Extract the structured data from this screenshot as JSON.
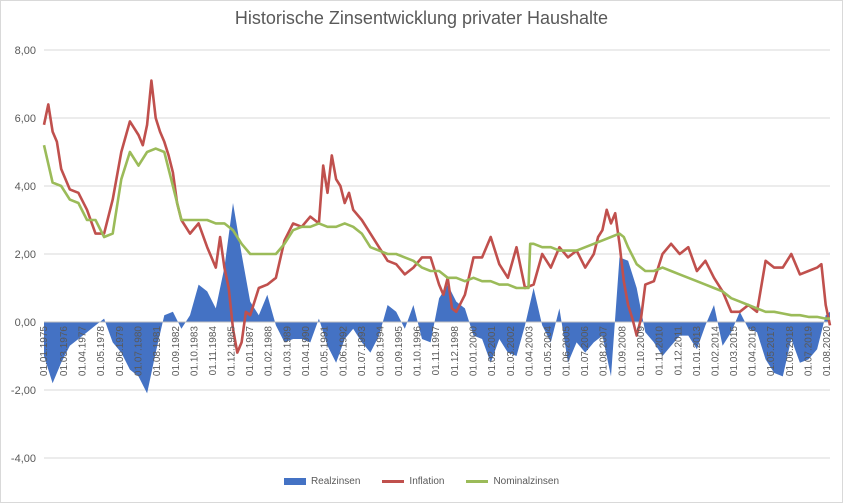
{
  "chart_data": {
    "type": "line",
    "title": "Historische Zinsentwicklung privater Haushalte",
    "xlabel": "",
    "ylabel": "",
    "ylim": [
      -4,
      8
    ],
    "y_ticks": [
      "8,00",
      "6,00",
      "4,00",
      "2,00",
      "0,00",
      "-2,00",
      "-4,00"
    ],
    "y_tick_values": [
      8,
      6,
      4,
      2,
      0,
      -2,
      -4
    ],
    "x_tick_labels": [
      "01.01.1975",
      "01.03.1976",
      "01.04.1977",
      "01.05.1978",
      "01.06.1979",
      "01.07.1980",
      "01.08.1981",
      "01.09.1982",
      "01.10.1983",
      "01.11.1984",
      "01.12.1985",
      "01.01.1987",
      "01.02.1988",
      "01.03.1989",
      "01.04.1990",
      "01.05.1991",
      "01.06.1992",
      "01.07.1993",
      "01.08.1994",
      "01.09.1995",
      "01.10.1996",
      "01.11.1997",
      "01.12.1998",
      "01.01.2000",
      "01.02.2001",
      "01.03.2002",
      "01.04.2003",
      "01.05.2004",
      "01.06.2005",
      "01.07.2006",
      "01.08.2007",
      "01.09.2008",
      "01.10.2009",
      "01.11.2010",
      "01.12.2011",
      "01.01.2013",
      "01.02.2014",
      "01.03.2015",
      "01.04.2016",
      "01.05.2017",
      "01.06.2018",
      "01.07.2019",
      "01.08.2020"
    ],
    "x_tick_years": [
      1975.0,
      1976.17,
      1977.25,
      1978.33,
      1979.42,
      1980.5,
      1981.58,
      1982.67,
      1983.75,
      1984.83,
      1985.92,
      1987.0,
      1988.08,
      1989.17,
      1990.25,
      1991.33,
      1992.42,
      1993.5,
      1994.58,
      1995.67,
      1996.75,
      1997.83,
      1998.92,
      2000.0,
      2001.08,
      2002.17,
      2003.25,
      2004.33,
      2005.42,
      2006.5,
      2007.58,
      2008.67,
      2009.75,
      2010.83,
      2011.92,
      2013.0,
      2014.08,
      2015.17,
      2016.25,
      2017.33,
      2018.42,
      2019.5,
      2020.58
    ],
    "x_range_years": [
      1975.0,
      2020.75
    ],
    "series": [
      {
        "name": "Realzinsen",
        "kind": "area",
        "color": "#4472c4",
        "x": [
          1975.0,
          1975.5,
          1976.0,
          1976.5,
          1977.0,
          1977.5,
          1978.0,
          1978.5,
          1979.0,
          1979.5,
          1980.0,
          1980.5,
          1981.0,
          1981.5,
          1982.0,
          1982.5,
          1983.0,
          1983.5,
          1984.0,
          1984.5,
          1985.0,
          1985.5,
          1986.0,
          1986.5,
          1987.0,
          1987.5,
          1988.0,
          1988.5,
          1989.0,
          1989.5,
          1990.0,
          1990.5,
          1991.0,
          1991.5,
          1992.0,
          1992.5,
          1993.0,
          1993.5,
          1994.0,
          1994.5,
          1995.0,
          1995.5,
          1996.0,
          1996.5,
          1997.0,
          1997.5,
          1998.0,
          1998.5,
          1999.0,
          1999.5,
          2000.0,
          2000.5,
          2001.0,
          2001.5,
          2002.0,
          2002.5,
          2003.0,
          2003.5,
          2004.0,
          2004.5,
          2005.0,
          2005.5,
          2006.0,
          2006.5,
          2007.0,
          2007.5,
          2008.0,
          2008.5,
          2009.0,
          2009.5,
          2010.0,
          2010.5,
          2011.0,
          2011.5,
          2012.0,
          2012.5,
          2013.0,
          2013.5,
          2014.0,
          2014.5,
          2015.0,
          2015.5,
          2016.0,
          2016.5,
          2017.0,
          2017.5,
          2018.0,
          2018.5,
          2019.0,
          2019.5,
          2020.0,
          2020.5,
          2020.75
        ],
        "values": [
          -1.0,
          -1.8,
          -1.2,
          -0.7,
          -0.5,
          -0.3,
          -0.1,
          0.1,
          -0.6,
          -0.9,
          -1.4,
          -1.6,
          -2.1,
          -0.9,
          0.2,
          0.3,
          -0.2,
          0.2,
          1.1,
          0.9,
          0.4,
          1.6,
          3.5,
          2.0,
          0.6,
          0.2,
          0.8,
          -0.1,
          -0.6,
          -0.5,
          -0.5,
          -0.6,
          0.1,
          -0.7,
          -1.2,
          -0.5,
          -0.2,
          -0.6,
          -0.9,
          -0.4,
          0.5,
          0.3,
          -0.2,
          0.5,
          -0.5,
          -0.6,
          0.7,
          1.1,
          0.6,
          0.4,
          -0.4,
          -0.5,
          -1.2,
          -0.5,
          -0.9,
          -1.0,
          -0.1,
          1.0,
          -0.1,
          -0.6,
          0.4,
          -1.2,
          -0.6,
          -0.9,
          -0.6,
          -0.4,
          -1.6,
          1.9,
          1.8,
          1.0,
          -0.3,
          -0.6,
          -1.0,
          -0.7,
          -0.4,
          -0.4,
          -0.8,
          -0.1,
          0.5,
          -0.7,
          -0.3,
          0.3,
          -0.2,
          -0.3,
          -1.1,
          -1.5,
          -1.6,
          -0.5,
          -1.2,
          -1.1,
          -0.8,
          0.2,
          0.3
        ]
      },
      {
        "name": "Inflation",
        "kind": "line",
        "color": "#c0504d",
        "x": [
          1975.0,
          1975.25,
          1975.5,
          1975.75,
          1976.0,
          1976.5,
          1977.0,
          1977.5,
          1978.0,
          1978.5,
          1979.0,
          1979.5,
          1980.0,
          1980.5,
          1980.75,
          1981.0,
          1981.25,
          1981.5,
          1981.75,
          1982.0,
          1982.25,
          1982.5,
          1982.75,
          1983.0,
          1983.5,
          1984.0,
          1984.5,
          1985.0,
          1985.25,
          1985.5,
          1985.75,
          1986.0,
          1986.25,
          1986.5,
          1986.75,
          1987.0,
          1987.5,
          1988.0,
          1988.5,
          1989.0,
          1989.5,
          1990.0,
          1990.5,
          1991.0,
          1991.25,
          1991.5,
          1991.75,
          1992.0,
          1992.25,
          1992.5,
          1992.75,
          1993.0,
          1993.5,
          1994.0,
          1994.5,
          1995.0,
          1995.5,
          1996.0,
          1996.5,
          1997.0,
          1997.5,
          1998.0,
          1998.25,
          1998.5,
          1998.75,
          1999.0,
          1999.5,
          2000.0,
          2000.5,
          2001.0,
          2001.5,
          2002.0,
          2002.5,
          2003.0,
          2003.5,
          2004.0,
          2004.5,
          2005.0,
          2005.5,
          2006.0,
          2006.5,
          2007.0,
          2007.25,
          2007.5,
          2007.75,
          2008.0,
          2008.25,
          2008.5,
          2008.75,
          2009.0,
          2009.25,
          2009.5,
          2009.75,
          2010.0,
          2010.5,
          2011.0,
          2011.5,
          2012.0,
          2012.5,
          2013.0,
          2013.5,
          2014.0,
          2014.5,
          2015.0,
          2015.5,
          2016.0,
          2016.5,
          2017.0,
          2017.5,
          2018.0,
          2018.5,
          2019.0,
          2019.5,
          2020.0,
          2020.25,
          2020.5,
          2020.75
        ],
        "values": [
          5.8,
          6.4,
          5.6,
          5.3,
          4.5,
          3.9,
          3.8,
          3.3,
          2.6,
          2.6,
          3.6,
          5.0,
          5.9,
          5.5,
          5.2,
          5.8,
          7.1,
          6.0,
          5.6,
          5.3,
          4.9,
          4.4,
          3.5,
          3.0,
          2.6,
          2.9,
          2.2,
          1.6,
          2.5,
          1.6,
          1.0,
          -0.2,
          -0.9,
          -0.6,
          0.3,
          0.2,
          1.0,
          1.1,
          1.3,
          2.4,
          2.9,
          2.8,
          3.1,
          2.9,
          4.6,
          3.8,
          4.9,
          4.2,
          4.0,
          3.5,
          3.8,
          3.3,
          3.0,
          2.6,
          2.2,
          1.8,
          1.7,
          1.4,
          1.6,
          1.9,
          1.9,
          1.1,
          0.8,
          1.3,
          0.4,
          0.3,
          0.8,
          1.9,
          1.9,
          2.5,
          1.7,
          1.3,
          2.2,
          1.0,
          1.1,
          2.0,
          1.6,
          2.2,
          1.9,
          2.1,
          1.6,
          2.0,
          2.5,
          2.7,
          3.3,
          2.9,
          3.2,
          2.3,
          1.2,
          0.5,
          0.1,
          -0.4,
          0.1,
          1.1,
          1.2,
          2.0,
          2.3,
          2.0,
          2.2,
          1.5,
          1.8,
          1.3,
          0.9,
          0.3,
          0.3,
          0.5,
          0.3,
          1.8,
          1.6,
          1.6,
          2.0,
          1.4,
          1.5,
          1.6,
          1.7,
          0.5,
          -0.1
        ]
      },
      {
        "name": "Nominalzinsen",
        "kind": "line",
        "color": "#9bbb59",
        "x": [
          1975.0,
          1975.5,
          1976.0,
          1976.5,
          1977.0,
          1977.5,
          1978.0,
          1978.5,
          1979.0,
          1979.5,
          1980.0,
          1980.5,
          1981.0,
          1981.5,
          1982.0,
          1982.5,
          1983.0,
          1983.5,
          1984.0,
          1984.5,
          1985.0,
          1985.5,
          1986.0,
          1986.5,
          1987.0,
          1987.5,
          1988.0,
          1988.5,
          1989.0,
          1989.5,
          1990.0,
          1990.5,
          1991.0,
          1991.5,
          1992.0,
          1992.5,
          1993.0,
          1993.5,
          1994.0,
          1994.5,
          1995.0,
          1995.5,
          1996.0,
          1996.5,
          1997.0,
          1997.5,
          1998.0,
          1998.5,
          1999.0,
          1999.5,
          2000.0,
          2000.5,
          2001.0,
          2001.5,
          2002.0,
          2002.5,
          2003.0,
          2003.2,
          2003.3,
          2003.5,
          2004.0,
          2004.5,
          2005.0,
          2005.5,
          2006.0,
          2006.5,
          2007.0,
          2007.5,
          2008.0,
          2008.5,
          2008.75,
          2009.0,
          2009.5,
          2010.0,
          2010.5,
          2011.0,
          2011.5,
          2012.0,
          2012.5,
          2013.0,
          2013.5,
          2014.0,
          2014.5,
          2015.0,
          2015.5,
          2016.0,
          2016.5,
          2017.0,
          2017.5,
          2018.0,
          2018.5,
          2019.0,
          2019.5,
          2020.0,
          2020.5,
          2020.75
        ],
        "values": [
          5.2,
          4.1,
          4.0,
          3.6,
          3.5,
          3.0,
          3.0,
          2.5,
          2.6,
          4.2,
          5.0,
          4.6,
          5.0,
          5.1,
          5.0,
          4.0,
          3.0,
          3.0,
          3.0,
          3.0,
          2.9,
          2.9,
          2.7,
          2.3,
          2.0,
          2.0,
          2.0,
          2.0,
          2.3,
          2.7,
          2.8,
          2.8,
          2.9,
          2.8,
          2.8,
          2.9,
          2.8,
          2.6,
          2.2,
          2.1,
          2.0,
          2.0,
          1.9,
          1.8,
          1.6,
          1.5,
          1.5,
          1.3,
          1.3,
          1.2,
          1.3,
          1.2,
          1.2,
          1.1,
          1.1,
          1.0,
          1.0,
          1.0,
          2.3,
          2.3,
          2.2,
          2.2,
          2.1,
          2.1,
          2.1,
          2.2,
          2.3,
          2.4,
          2.5,
          2.6,
          2.5,
          2.2,
          1.7,
          1.5,
          1.5,
          1.6,
          1.5,
          1.4,
          1.3,
          1.2,
          1.1,
          1.0,
          0.9,
          0.7,
          0.6,
          0.5,
          0.4,
          0.3,
          0.3,
          0.25,
          0.2,
          0.2,
          0.15,
          0.15,
          0.1,
          0.1
        ]
      }
    ],
    "legend": [
      "Realzinsen",
      "Inflation",
      "Nominalzinsen"
    ],
    "legend_position": "bottom",
    "grid": true
  }
}
